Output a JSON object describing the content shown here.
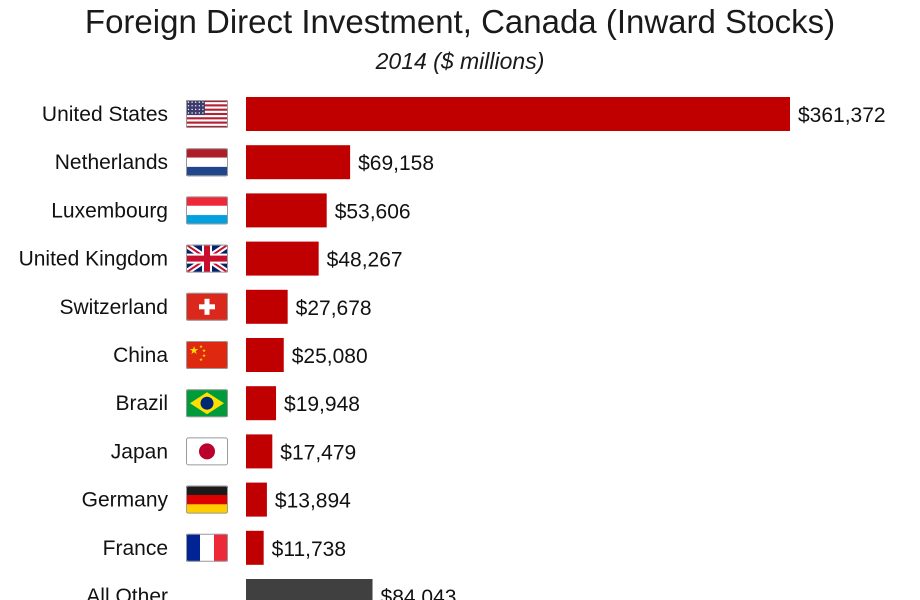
{
  "header": {
    "title": "Foreign Direct Investment, Canada (Inward Stocks)",
    "subtitle": "2014 ($ millions)"
  },
  "colors": {
    "bar": "#c00000",
    "bar_other": "#404040",
    "text": "#111111"
  },
  "chart_data": {
    "type": "bar",
    "orientation": "horizontal",
    "title": "Foreign Direct Investment, Canada (Inward Stocks)",
    "subtitle": "2014 ($ millions)",
    "categories": [
      "United States",
      "Netherlands",
      "Luxembourg",
      "United Kingdom",
      "Switzerland",
      "China",
      "Brazil",
      "Japan",
      "Germany",
      "France",
      "All Other"
    ],
    "values": [
      361372,
      69158,
      53606,
      48267,
      27678,
      25080,
      19948,
      17479,
      13894,
      11738,
      84043
    ],
    "data_labels": [
      "$361,372",
      "$69,158",
      "$53,606",
      "$48,267",
      "$27,678",
      "$25,080",
      "$19,948",
      "$17,479",
      "$13,894",
      "$11,738",
      "$84,043"
    ],
    "flags": [
      "us-flag-icon",
      "netherlands-flag-icon",
      "luxembourg-flag-icon",
      "uk-flag-icon",
      "switzerland-flag-icon",
      "china-flag-icon",
      "brazil-flag-icon",
      "japan-flag-icon",
      "germany-flag-icon",
      "france-flag-icon",
      "none"
    ],
    "xlim": [
      0,
      361372
    ],
    "grid": false,
    "legend": "none"
  }
}
